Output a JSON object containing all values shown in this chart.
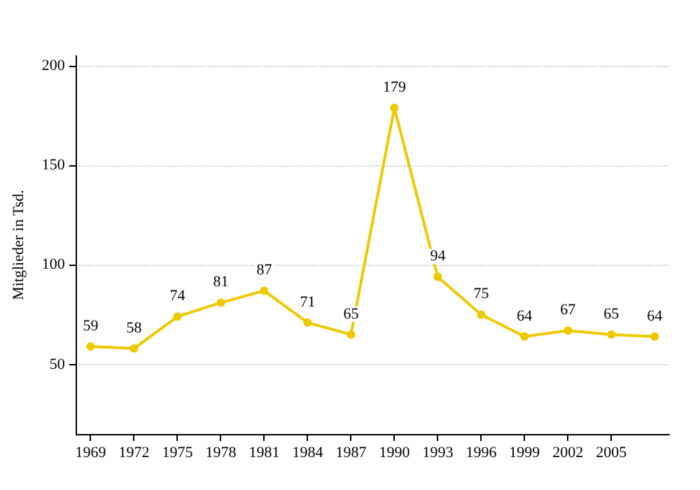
{
  "chart_data": {
    "type": "line",
    "ylabel": "Mitglieder in Tsd.",
    "x": [
      1969,
      1972,
      1975,
      1978,
      1981,
      1984,
      1987,
      1990,
      1993,
      1996,
      1999,
      2002,
      2005,
      2008
    ],
    "series": [
      {
        "color": "#eec900",
        "values": [
          59,
          58,
          74,
          81,
          87,
          71,
          65,
          179,
          94,
          75,
          64,
          67,
          65,
          64
        ]
      }
    ],
    "xlim": [
      1968,
      2009
    ],
    "xticks": [
      1969,
      1972,
      1975,
      1978,
      1981,
      1984,
      1987,
      1990,
      1993,
      1996,
      1999,
      2002,
      2005
    ],
    "ylim": [
      15,
      205
    ],
    "yticks": [
      50,
      100,
      150,
      200
    ],
    "grid": "y",
    "marker": "circle",
    "line_style": "solid",
    "data_labels": true
  }
}
